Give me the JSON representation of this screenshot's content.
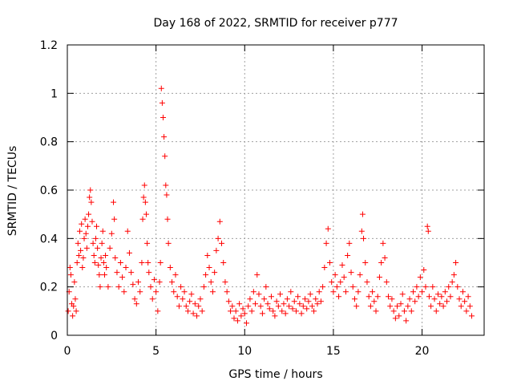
{
  "chart_data": {
    "type": "scatter",
    "title": "Day 168 of 2022, SRMTID for receiver p777",
    "xlabel": "GPS time / hours",
    "ylabel": "SRMTID / TECUs",
    "xlim": [
      0,
      23.5
    ],
    "ylim": [
      0,
      1.2
    ],
    "xticks": [
      0,
      5,
      10,
      15,
      20
    ],
    "xtick_labels": [
      "0",
      "5",
      "10",
      "15",
      "20"
    ],
    "yticks": [
      0,
      0.2,
      0.4,
      0.6,
      0.8,
      1.0,
      1.2
    ],
    "ytick_labels": [
      "0",
      "0.2",
      "0.4",
      "0.6",
      "0.8",
      "1",
      "1.2"
    ],
    "grid": true,
    "marker": "+",
    "marker_color": "#ff0000",
    "series": [
      {
        "name": "SRMTID",
        "points": [
          [
            0.05,
            0.1
          ],
          [
            0.1,
            0.18
          ],
          [
            0.15,
            0.28
          ],
          [
            0.2,
            0.25
          ],
          [
            0.25,
            0.13
          ],
          [
            0.3,
            0.08
          ],
          [
            0.35,
            0.12
          ],
          [
            0.4,
            0.22
          ],
          [
            0.45,
            0.15
          ],
          [
            0.5,
            0.1
          ],
          [
            0.55,
            0.3
          ],
          [
            0.6,
            0.38
          ],
          [
            0.65,
            0.33
          ],
          [
            0.7,
            0.43
          ],
          [
            0.75,
            0.35
          ],
          [
            0.8,
            0.46
          ],
          [
            0.85,
            0.28
          ],
          [
            0.9,
            0.32
          ],
          [
            0.95,
            0.4
          ],
          [
            1.0,
            0.48
          ],
          [
            1.05,
            0.42
          ],
          [
            1.1,
            0.36
          ],
          [
            1.15,
            0.45
          ],
          [
            1.2,
            0.5
          ],
          [
            1.25,
            0.57
          ],
          [
            1.3,
            0.6
          ],
          [
            1.35,
            0.55
          ],
          [
            1.4,
            0.47
          ],
          [
            1.45,
            0.38
          ],
          [
            1.5,
            0.33
          ],
          [
            1.55,
            0.3
          ],
          [
            1.6,
            0.4
          ],
          [
            1.65,
            0.45
          ],
          [
            1.7,
            0.36
          ],
          [
            1.75,
            0.29
          ],
          [
            1.8,
            0.25
          ],
          [
            1.85,
            0.2
          ],
          [
            1.9,
            0.32
          ],
          [
            1.95,
            0.38
          ],
          [
            2.0,
            0.43
          ],
          [
            2.05,
            0.3
          ],
          [
            2.1,
            0.25
          ],
          [
            2.15,
            0.33
          ],
          [
            2.2,
            0.28
          ],
          [
            2.3,
            0.2
          ],
          [
            2.4,
            0.36
          ],
          [
            2.5,
            0.42
          ],
          [
            2.6,
            0.55
          ],
          [
            2.65,
            0.48
          ],
          [
            2.7,
            0.32
          ],
          [
            2.8,
            0.26
          ],
          [
            2.9,
            0.2
          ],
          [
            3.0,
            0.3
          ],
          [
            3.1,
            0.24
          ],
          [
            3.2,
            0.18
          ],
          [
            3.3,
            0.28
          ],
          [
            3.4,
            0.43
          ],
          [
            3.5,
            0.34
          ],
          [
            3.6,
            0.26
          ],
          [
            3.7,
            0.21
          ],
          [
            3.8,
            0.15
          ],
          [
            3.9,
            0.13
          ],
          [
            4.0,
            0.22
          ],
          [
            4.1,
            0.18
          ],
          [
            4.2,
            0.3
          ],
          [
            4.25,
            0.48
          ],
          [
            4.3,
            0.57
          ],
          [
            4.35,
            0.62
          ],
          [
            4.4,
            0.55
          ],
          [
            4.45,
            0.5
          ],
          [
            4.5,
            0.38
          ],
          [
            4.55,
            0.3
          ],
          [
            4.6,
            0.26
          ],
          [
            4.7,
            0.2
          ],
          [
            4.8,
            0.15
          ],
          [
            4.9,
            0.23
          ],
          [
            5.0,
            0.18
          ],
          [
            5.1,
            0.1
          ],
          [
            5.2,
            0.22
          ],
          [
            5.25,
            0.3
          ],
          [
            5.3,
            1.02
          ],
          [
            5.35,
            0.96
          ],
          [
            5.4,
            0.9
          ],
          [
            5.45,
            0.82
          ],
          [
            5.5,
            0.74
          ],
          [
            5.55,
            0.62
          ],
          [
            5.6,
            0.58
          ],
          [
            5.65,
            0.48
          ],
          [
            5.7,
            0.38
          ],
          [
            5.8,
            0.28
          ],
          [
            5.9,
            0.22
          ],
          [
            6.0,
            0.18
          ],
          [
            6.1,
            0.25
          ],
          [
            6.2,
            0.16
          ],
          [
            6.3,
            0.12
          ],
          [
            6.4,
            0.2
          ],
          [
            6.5,
            0.15
          ],
          [
            6.6,
            0.18
          ],
          [
            6.7,
            0.12
          ],
          [
            6.8,
            0.1
          ],
          [
            6.9,
            0.14
          ],
          [
            7.0,
            0.17
          ],
          [
            7.1,
            0.09
          ],
          [
            7.2,
            0.13
          ],
          [
            7.3,
            0.08
          ],
          [
            7.4,
            0.12
          ],
          [
            7.5,
            0.15
          ],
          [
            7.6,
            0.1
          ],
          [
            7.7,
            0.2
          ],
          [
            7.8,
            0.25
          ],
          [
            7.9,
            0.33
          ],
          [
            8.0,
            0.28
          ],
          [
            8.1,
            0.22
          ],
          [
            8.2,
            0.18
          ],
          [
            8.3,
            0.26
          ],
          [
            8.4,
            0.35
          ],
          [
            8.5,
            0.4
          ],
          [
            8.6,
            0.47
          ],
          [
            8.7,
            0.38
          ],
          [
            8.8,
            0.3
          ],
          [
            8.9,
            0.22
          ],
          [
            9.0,
            0.18
          ],
          [
            9.1,
            0.14
          ],
          [
            9.2,
            0.1
          ],
          [
            9.3,
            0.12
          ],
          [
            9.4,
            0.07
          ],
          [
            9.5,
            0.1
          ],
          [
            9.6,
            0.06
          ],
          [
            9.7,
            0.13
          ],
          [
            9.8,
            0.08
          ],
          [
            9.9,
            0.11
          ],
          [
            10.0,
            0.09
          ],
          [
            10.1,
            0.05
          ],
          [
            10.2,
            0.12
          ],
          [
            10.3,
            0.15
          ],
          [
            10.4,
            0.1
          ],
          [
            10.5,
            0.18
          ],
          [
            10.6,
            0.13
          ],
          [
            10.7,
            0.25
          ],
          [
            10.8,
            0.17
          ],
          [
            10.9,
            0.12
          ],
          [
            11.0,
            0.09
          ],
          [
            11.1,
            0.15
          ],
          [
            11.2,
            0.2
          ],
          [
            11.3,
            0.13
          ],
          [
            11.4,
            0.11
          ],
          [
            11.5,
            0.16
          ],
          [
            11.6,
            0.1
          ],
          [
            11.7,
            0.08
          ],
          [
            11.8,
            0.14
          ],
          [
            11.9,
            0.12
          ],
          [
            12.0,
            0.17
          ],
          [
            12.1,
            0.1
          ],
          [
            12.2,
            0.13
          ],
          [
            12.3,
            0.09
          ],
          [
            12.4,
            0.15
          ],
          [
            12.5,
            0.12
          ],
          [
            12.6,
            0.18
          ],
          [
            12.7,
            0.11
          ],
          [
            12.8,
            0.14
          ],
          [
            12.9,
            0.1
          ],
          [
            13.0,
            0.16
          ],
          [
            13.1,
            0.13
          ],
          [
            13.2,
            0.09
          ],
          [
            13.3,
            0.12
          ],
          [
            13.4,
            0.15
          ],
          [
            13.5,
            0.11
          ],
          [
            13.6,
            0.14
          ],
          [
            13.7,
            0.17
          ],
          [
            13.8,
            0.12
          ],
          [
            13.9,
            0.1
          ],
          [
            14.0,
            0.15
          ],
          [
            14.1,
            0.13
          ],
          [
            14.2,
            0.18
          ],
          [
            14.3,
            0.14
          ],
          [
            14.4,
            0.2
          ],
          [
            14.5,
            0.28
          ],
          [
            14.6,
            0.38
          ],
          [
            14.7,
            0.44
          ],
          [
            14.8,
            0.3
          ],
          [
            14.9,
            0.22
          ],
          [
            15.0,
            0.18
          ],
          [
            15.1,
            0.25
          ],
          [
            15.2,
            0.2
          ],
          [
            15.3,
            0.16
          ],
          [
            15.4,
            0.22
          ],
          [
            15.5,
            0.29
          ],
          [
            15.6,
            0.24
          ],
          [
            15.7,
            0.18
          ],
          [
            15.8,
            0.33
          ],
          [
            15.9,
            0.38
          ],
          [
            16.0,
            0.26
          ],
          [
            16.1,
            0.2
          ],
          [
            16.2,
            0.15
          ],
          [
            16.3,
            0.12
          ],
          [
            16.4,
            0.18
          ],
          [
            16.5,
            0.25
          ],
          [
            16.6,
            0.43
          ],
          [
            16.65,
            0.5
          ],
          [
            16.7,
            0.4
          ],
          [
            16.8,
            0.3
          ],
          [
            16.9,
            0.22
          ],
          [
            17.0,
            0.16
          ],
          [
            17.1,
            0.12
          ],
          [
            17.2,
            0.18
          ],
          [
            17.3,
            0.14
          ],
          [
            17.4,
            0.1
          ],
          [
            17.5,
            0.16
          ],
          [
            17.6,
            0.24
          ],
          [
            17.7,
            0.3
          ],
          [
            17.8,
            0.38
          ],
          [
            17.9,
            0.32
          ],
          [
            18.0,
            0.22
          ],
          [
            18.1,
            0.16
          ],
          [
            18.2,
            0.12
          ],
          [
            18.3,
            0.15
          ],
          [
            18.4,
            0.1
          ],
          [
            18.5,
            0.07
          ],
          [
            18.6,
            0.12
          ],
          [
            18.7,
            0.08
          ],
          [
            18.8,
            0.13
          ],
          [
            18.9,
            0.17
          ],
          [
            19.0,
            0.1
          ],
          [
            19.1,
            0.06
          ],
          [
            19.2,
            0.12
          ],
          [
            19.3,
            0.15
          ],
          [
            19.4,
            0.1
          ],
          [
            19.5,
            0.18
          ],
          [
            19.6,
            0.14
          ],
          [
            19.7,
            0.2
          ],
          [
            19.8,
            0.16
          ],
          [
            19.9,
            0.24
          ],
          [
            20.0,
            0.18
          ],
          [
            20.1,
            0.27
          ],
          [
            20.2,
            0.2
          ],
          [
            20.3,
            0.45
          ],
          [
            20.35,
            0.43
          ],
          [
            20.4,
            0.16
          ],
          [
            20.5,
            0.12
          ],
          [
            20.6,
            0.2
          ],
          [
            20.7,
            0.15
          ],
          [
            20.8,
            0.1
          ],
          [
            20.9,
            0.17
          ],
          [
            21.0,
            0.13
          ],
          [
            21.1,
            0.16
          ],
          [
            21.2,
            0.12
          ],
          [
            21.3,
            0.18
          ],
          [
            21.4,
            0.14
          ],
          [
            21.5,
            0.2
          ],
          [
            21.6,
            0.16
          ],
          [
            21.7,
            0.22
          ],
          [
            21.8,
            0.25
          ],
          [
            21.9,
            0.3
          ],
          [
            22.0,
            0.2
          ],
          [
            22.1,
            0.15
          ],
          [
            22.2,
            0.12
          ],
          [
            22.3,
            0.18
          ],
          [
            22.4,
            0.14
          ],
          [
            22.5,
            0.1
          ],
          [
            22.6,
            0.16
          ],
          [
            22.7,
            0.12
          ],
          [
            22.8,
            0.08
          ]
        ]
      }
    ]
  }
}
